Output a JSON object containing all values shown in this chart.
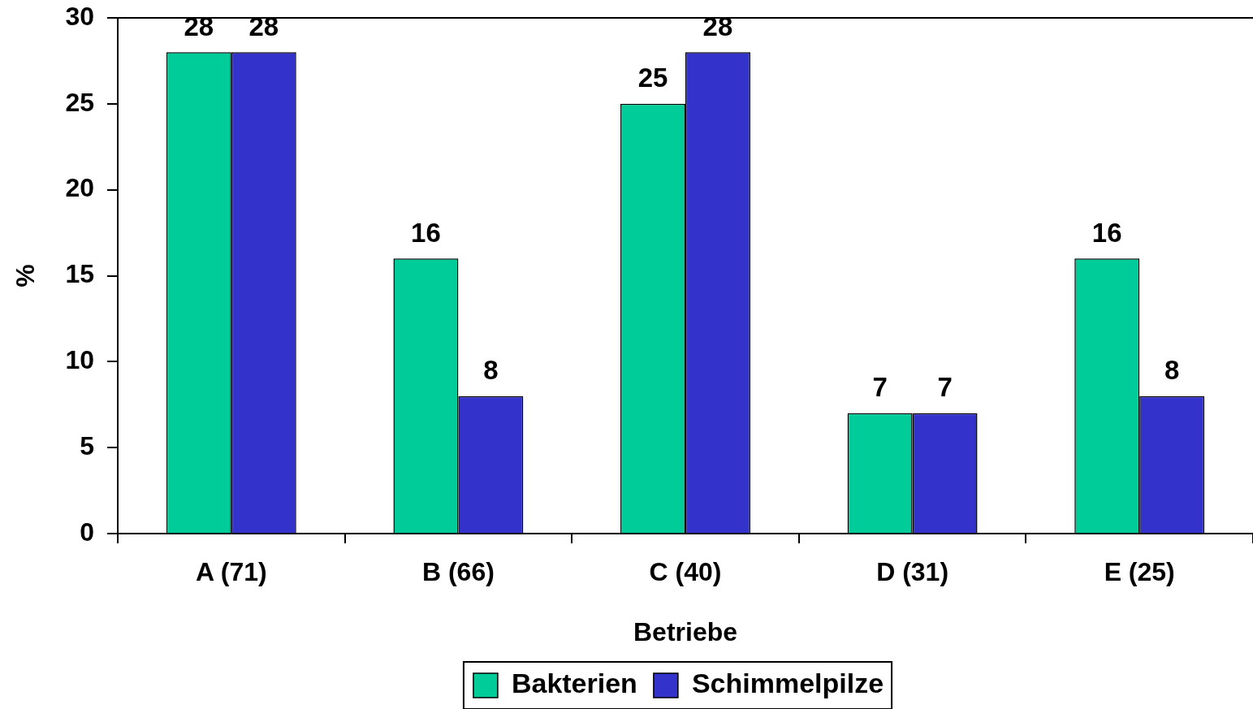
{
  "chart_data": {
    "type": "bar",
    "xlabel": "Betriebe",
    "ylabel": "%",
    "categories": [
      "A (71)",
      "B (66)",
      "C (40)",
      "D (31)",
      "E (25)"
    ],
    "series": [
      {
        "name": "Bakterien",
        "color": "#00cc99",
        "values": [
          28,
          16,
          25,
          7,
          16
        ]
      },
      {
        "name": "Schimmelpilze",
        "color": "#3333cc",
        "values": [
          28,
          8,
          28,
          7,
          8
        ]
      }
    ],
    "ylim": [
      0,
      30
    ],
    "yticks": [
      0,
      5,
      10,
      15,
      20,
      25,
      30
    ],
    "grid": false,
    "legend": "bottom",
    "data_labels": true
  }
}
